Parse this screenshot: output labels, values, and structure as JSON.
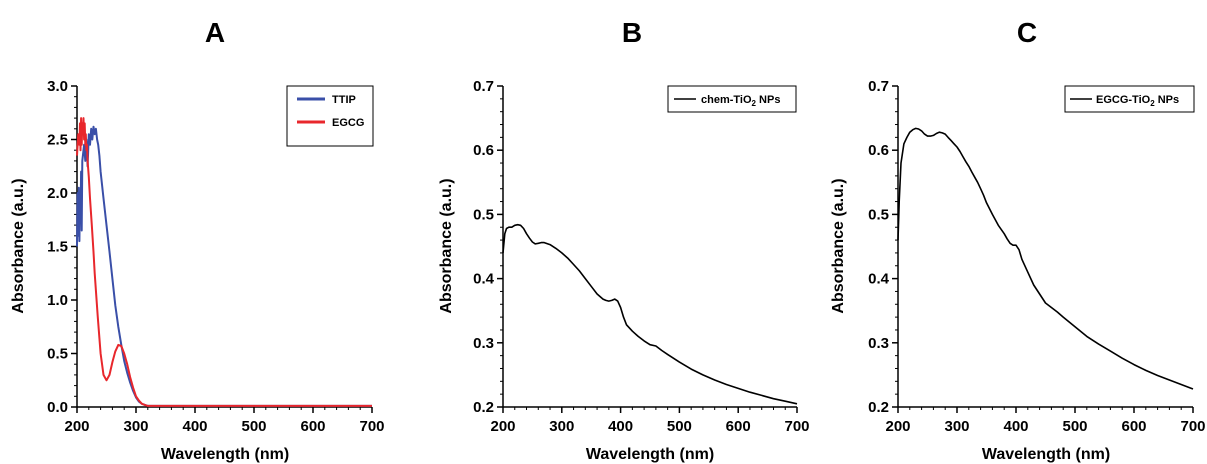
{
  "panels": [
    {
      "letter": "A",
      "chart_data": {
        "type": "line",
        "title": "",
        "xlabel": "Wavelength (nm)",
        "ylabel": "Absorbance (a.u.)",
        "xlim": [
          200,
          700
        ],
        "ylim": [
          0.0,
          3.0
        ],
        "xticks": [
          "200",
          "300",
          "400",
          "500",
          "600",
          "700"
        ],
        "yticks": [
          "0.0",
          "0.5",
          "1.0",
          "1.5",
          "2.0",
          "2.5",
          "3.0"
        ],
        "grid": false,
        "legend_position": "top-right",
        "series": [
          {
            "name": "TTIP",
            "color": "#3a4fa8",
            "x": [
              200,
              201,
              202,
              203,
              204,
              205,
              206,
              207,
              208,
              209,
              210,
              212,
              214,
              216,
              218,
              220,
              222,
              224,
              226,
              228,
              230,
              232,
              234,
              236,
              238,
              240,
              245,
              250,
              255,
              260,
              265,
              270,
              275,
              280,
              285,
              290,
              295,
              300,
              305,
              310,
              315,
              320,
              330,
              350,
              400,
              500,
              600,
              700
            ],
            "y": [
              1.5,
              2.0,
              1.6,
              2.05,
              1.55,
              2.0,
              1.75,
              2.2,
              1.65,
              2.3,
              2.35,
              2.45,
              2.3,
              2.5,
              2.25,
              2.55,
              2.45,
              2.6,
              2.5,
              2.62,
              2.55,
              2.6,
              2.5,
              2.45,
              2.35,
              2.2,
              1.95,
              1.7,
              1.45,
              1.2,
              0.95,
              0.75,
              0.58,
              0.43,
              0.32,
              0.23,
              0.15,
              0.09,
              0.05,
              0.03,
              0.02,
              0.01,
              0.01,
              0.01,
              0.01,
              0.01,
              0.01,
              0.01
            ]
          },
          {
            "name": "EGCG",
            "color": "#e8272c",
            "x": [
              200,
              202,
              204,
              205,
              206,
              207,
              208,
              209,
              210,
              211,
              212,
              213,
              214,
              215,
              216,
              217,
              218,
              220,
              222,
              225,
              228,
              230,
              235,
              240,
              245,
              250,
              255,
              260,
              265,
              270,
              275,
              280,
              285,
              290,
              295,
              300,
              305,
              310,
              315,
              320,
              330,
              350,
              400,
              500,
              600,
              700
            ],
            "y": [
              2.35,
              2.55,
              2.45,
              2.65,
              2.4,
              2.7,
              2.45,
              2.65,
              2.55,
              2.7,
              2.5,
              2.65,
              2.45,
              2.55,
              2.4,
              2.45,
              2.3,
              2.15,
              1.95,
              1.7,
              1.45,
              1.25,
              0.85,
              0.5,
              0.3,
              0.25,
              0.3,
              0.42,
              0.52,
              0.58,
              0.57,
              0.5,
              0.4,
              0.28,
              0.18,
              0.1,
              0.06,
              0.03,
              0.02,
              0.01,
              0.01,
              0.01,
              0.01,
              0.01,
              0.01,
              0.01
            ]
          }
        ]
      }
    },
    {
      "letter": "B",
      "chart_data": {
        "type": "line",
        "title": "",
        "xlabel": "Wavelength (nm)",
        "ylabel": "Absorbance (a.u.)",
        "xlim": [
          200,
          700
        ],
        "ylim": [
          0.2,
          0.7
        ],
        "xticks": [
          "200",
          "300",
          "400",
          "500",
          "600",
          "700"
        ],
        "yticks": [
          "0.2",
          "0.3",
          "0.4",
          "0.5",
          "0.6",
          "0.7"
        ],
        "grid": false,
        "legend_position": "top-right",
        "series": [
          {
            "name": "chem-TiO2 NPs",
            "name_main": "chem-TiO",
            "name_sub": "2",
            "name_tail": " NPs",
            "color": "#000000",
            "x": [
              200,
              203,
              206,
              210,
              215,
              220,
              225,
              230,
              235,
              240,
              245,
              250,
              255,
              260,
              265,
              270,
              280,
              290,
              300,
              310,
              320,
              330,
              340,
              350,
              360,
              370,
              375,
              380,
              385,
              390,
              395,
              400,
              405,
              410,
              420,
              430,
              440,
              450,
              460,
              470,
              480,
              500,
              520,
              540,
              560,
              580,
              600,
              620,
              640,
              660,
              680,
              700
            ],
            "y": [
              0.44,
              0.47,
              0.478,
              0.48,
              0.48,
              0.483,
              0.484,
              0.483,
              0.478,
              0.47,
              0.463,
              0.457,
              0.454,
              0.455,
              0.456,
              0.456,
              0.453,
              0.447,
              0.44,
              0.432,
              0.422,
              0.412,
              0.4,
              0.388,
              0.376,
              0.368,
              0.366,
              0.365,
              0.366,
              0.368,
              0.365,
              0.355,
              0.34,
              0.328,
              0.318,
              0.31,
              0.303,
              0.297,
              0.295,
              0.288,
              0.282,
              0.27,
              0.259,
              0.25,
              0.242,
              0.235,
              0.229,
              0.223,
              0.218,
              0.213,
              0.209,
              0.205
            ]
          }
        ]
      }
    },
    {
      "letter": "C",
      "chart_data": {
        "type": "line",
        "title": "",
        "xlabel": "Wavelength (nm)",
        "ylabel": "Absorbance (a.u.)",
        "xlim": [
          200,
          700
        ],
        "ylim": [
          0.2,
          0.7
        ],
        "xticks": [
          "200",
          "300",
          "400",
          "500",
          "600",
          "700"
        ],
        "yticks": [
          "0.2",
          "0.3",
          "0.4",
          "0.5",
          "0.6",
          "0.7"
        ],
        "grid": false,
        "legend_position": "top-right",
        "series": [
          {
            "name": "EGCG-TiO2 NPs",
            "name_main": "EGCG-TiO",
            "name_sub": "2",
            "name_tail": " NPs",
            "color": "#000000",
            "x": [
              200,
              202,
              205,
              210,
              215,
              220,
              225,
              230,
              235,
              240,
              245,
              250,
              255,
              260,
              265,
              270,
              275,
              280,
              285,
              290,
              295,
              300,
              305,
              310,
              315,
              320,
              325,
              330,
              335,
              340,
              345,
              350,
              360,
              370,
              380,
              385,
              390,
              395,
              400,
              405,
              410,
              420,
              430,
              440,
              450,
              460,
              470,
              480,
              500,
              520,
              540,
              560,
              580,
              600,
              620,
              640,
              660,
              680,
              700
            ],
            "y": [
              0.46,
              0.52,
              0.58,
              0.61,
              0.62,
              0.628,
              0.632,
              0.634,
              0.633,
              0.63,
              0.625,
              0.622,
              0.622,
              0.623,
              0.626,
              0.628,
              0.627,
              0.625,
              0.62,
              0.615,
              0.61,
              0.605,
              0.598,
              0.59,
              0.582,
              0.575,
              0.566,
              0.558,
              0.55,
              0.54,
              0.53,
              0.518,
              0.5,
              0.483,
              0.47,
              0.462,
              0.455,
              0.452,
              0.452,
              0.445,
              0.43,
              0.41,
              0.39,
              0.376,
              0.362,
              0.355,
              0.348,
              0.34,
              0.325,
              0.31,
              0.298,
              0.287,
              0.276,
              0.266,
              0.257,
              0.249,
              0.242,
              0.235,
              0.228
            ]
          }
        ]
      }
    }
  ]
}
